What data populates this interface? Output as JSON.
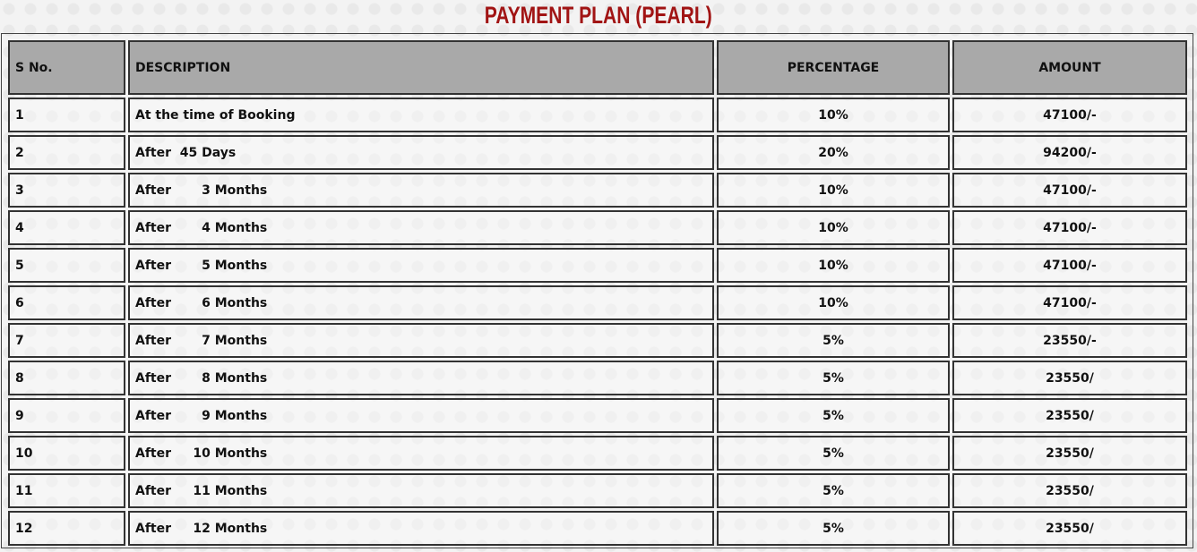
{
  "title": "PAYMENT PLAN (PEARL)",
  "headers": {
    "sno": "S No.",
    "description": "DESCRIPTION",
    "percentage": "PERCENTAGE",
    "amount": "AMOUNT"
  },
  "rows": [
    {
      "sno": "1",
      "description": "At the time of Booking",
      "percentage": "10%",
      "amount": "47100/-"
    },
    {
      "sno": "2",
      "description": "After  45 Days",
      "percentage": "20%",
      "amount": "94200/-"
    },
    {
      "sno": "3",
      "description": "After       3 Months",
      "percentage": "10%",
      "amount": "47100/-"
    },
    {
      "sno": "4",
      "description": "After       4 Months",
      "percentage": "10%",
      "amount": "47100/-"
    },
    {
      "sno": "5",
      "description": "After       5 Months",
      "percentage": "10%",
      "amount": "47100/-"
    },
    {
      "sno": "6",
      "description": "After       6 Months",
      "percentage": "10%",
      "amount": "47100/-"
    },
    {
      "sno": "7",
      "description": "After       7 Months",
      "percentage": "5%",
      "amount": "23550/-"
    },
    {
      "sno": "8",
      "description": "After       8 Months",
      "percentage": "5%",
      "amount": "23550/"
    },
    {
      "sno": "9",
      "description": "After       9 Months",
      "percentage": "5%",
      "amount": "23550/"
    },
    {
      "sno": "10",
      "description": "After     10 Months",
      "percentage": "5%",
      "amount": "23550/"
    },
    {
      "sno": "11",
      "description": "After     11 Months",
      "percentage": "5%",
      "amount": "23550/"
    },
    {
      "sno": "12",
      "description": "After     12 Months",
      "percentage": "5%",
      "amount": "23550/"
    }
  ],
  "colors": {
    "title": "#a11414",
    "header_bg": "#a9a9a9"
  }
}
